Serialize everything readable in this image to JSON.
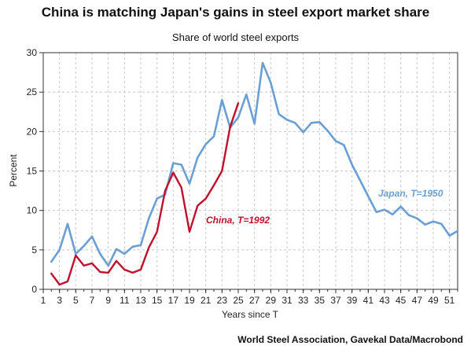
{
  "chart_data": {
    "type": "line",
    "title": "China is matching Japan's gains in steel export market share",
    "subtitle": "Share of world steel exports",
    "xlabel": "Years since T",
    "ylabel": "Percent",
    "source": "World Steel Association, Gavekal Data/Macrobond",
    "xlim": [
      1,
      52
    ],
    "ylim": [
      0,
      30
    ],
    "x_ticks": [
      "1",
      "3",
      "5",
      "7",
      "9",
      "11",
      "13",
      "15",
      "17",
      "19",
      "21",
      "23",
      "25",
      "27",
      "29",
      "31",
      "33",
      "35",
      "37",
      "39",
      "41",
      "43",
      "45",
      "47",
      "49",
      "51"
    ],
    "y_ticks": [
      "0",
      "5",
      "10",
      "15",
      "20",
      "25",
      "30"
    ],
    "grid": true,
    "series": [
      {
        "name": "Japan, T=1950",
        "color": "#6a9fd4",
        "x": [
          2,
          3,
          4,
          5,
          6,
          7,
          8,
          9,
          10,
          11,
          12,
          13,
          14,
          15,
          16,
          17,
          18,
          19,
          20,
          21,
          22,
          23,
          24,
          25,
          26,
          27,
          28,
          29,
          30,
          31,
          32,
          33,
          34,
          35,
          36,
          37,
          38,
          39,
          40,
          41,
          42,
          43,
          44,
          45,
          46,
          47,
          48,
          49,
          50,
          51,
          52
        ],
        "values": [
          3.5,
          5.0,
          8.3,
          4.5,
          5.5,
          6.7,
          4.5,
          3.0,
          5.1,
          4.5,
          5.4,
          5.6,
          9.0,
          11.5,
          12.0,
          16.0,
          15.8,
          13.4,
          16.7,
          18.4,
          19.4,
          24.0,
          20.5,
          21.8,
          24.7,
          21.0,
          28.7,
          26.2,
          22.2,
          21.5,
          21.1,
          19.9,
          21.1,
          21.2,
          20.1,
          18.8,
          18.3,
          15.8,
          13.8,
          11.8,
          9.8,
          10.1,
          9.5,
          10.5,
          9.4,
          9.0,
          8.2,
          8.6,
          8.3,
          6.8,
          7.4
        ]
      },
      {
        "name": "China, T=1992",
        "color": "#c0102c",
        "x": [
          2,
          3,
          4,
          5,
          6,
          7,
          8,
          9,
          10,
          11,
          12,
          13,
          14,
          15,
          16,
          17,
          18,
          19,
          20,
          21,
          22,
          23,
          24,
          25
        ],
        "values": [
          2.0,
          0.6,
          1.0,
          4.3,
          3.0,
          3.3,
          2.2,
          2.1,
          3.6,
          2.5,
          2.1,
          2.5,
          5.3,
          7.3,
          12.5,
          14.8,
          12.9,
          7.3,
          10.6,
          11.5,
          13.2,
          15.0,
          20.6,
          23.6
        ]
      }
    ]
  }
}
